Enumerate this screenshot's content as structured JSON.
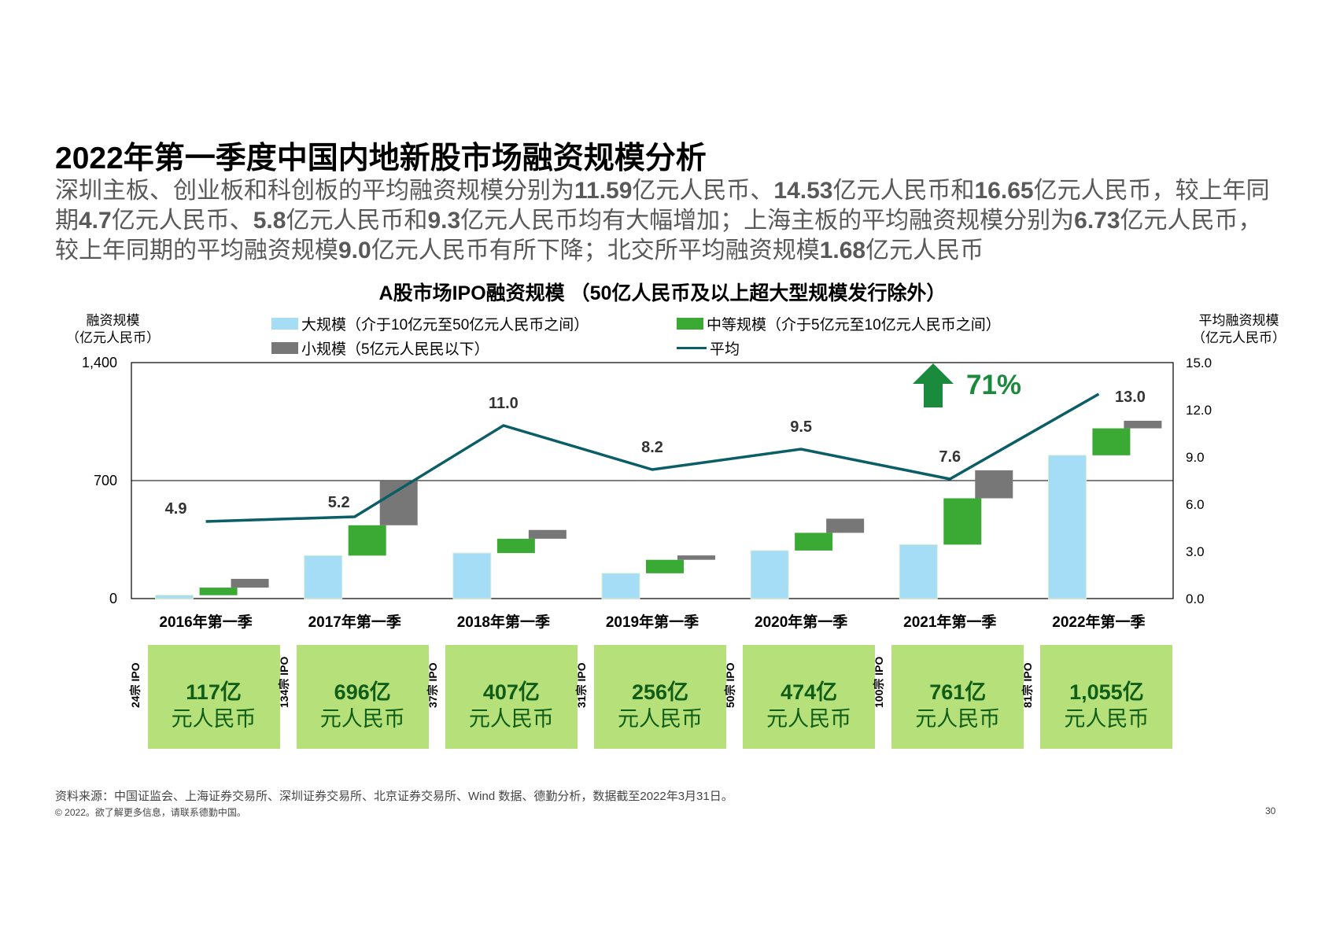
{
  "title": "2022年第一季度中国内地新股市场融资规模分析",
  "subtitle": {
    "p1": "深圳主板、创业板和科创板的平均融资规模分别为",
    "v1": "11.59",
    "p2": "亿元人民币、",
    "v2": "14.53",
    "p3": "亿元人民币和",
    "v3": "16.65",
    "p4": "亿元人民币，较上年同期",
    "v4": "4.7",
    "p5": "亿元人民币、",
    "v5": "5.8",
    "p6": "亿元人民币和",
    "v6": "9.3",
    "p7": "亿元人民币均有大幅增加；上海主板的平均融资规模分别为",
    "v7": "6.73",
    "p8": "亿元人民币，较上年同期的平均融资规模",
    "v8": "9.0",
    "p9": "亿元人民币有所下降；北交所平均融资规模",
    "v9": "1.68",
    "p10": "亿元人民币"
  },
  "chart_title": "A股市场IPO融资规模 （50亿人民币及以上超大型规模发行除外）",
  "left_axis_title": [
    "融资规模",
    "（亿元人民币）"
  ],
  "right_axis_title": [
    "平均融资规模",
    "（亿元人民币）"
  ],
  "legend": {
    "large": "大规模（介于10亿元至50亿元人民币之间）",
    "medium": "中等规模（介于5亿元至10亿元人民币之间）",
    "small": "小规模（5亿元人民民以下）",
    "avg": "平均"
  },
  "growth_label": "71%",
  "colors": {
    "large": "#a5dcf6",
    "medium": "#3aaa35",
    "small": "#777777",
    "avg": "#0b5d66",
    "box": "#b6e07a",
    "box_text": "#0f5d16",
    "arrow": "#1a8a3c"
  },
  "chart_data": {
    "type": "bar",
    "categories": [
      "2016年第一季",
      "2017年第一季",
      "2018年第一季",
      "2019年第一季",
      "2020年第一季",
      "2021年第一季",
      "2022年第一季"
    ],
    "series": [
      {
        "name": "大规模（介于10亿元至50亿元人民币之间）",
        "values": [
          20,
          255,
          270,
          150,
          285,
          320,
          850
        ]
      },
      {
        "name": "中等规模（介于5亿元至10亿元人民币之间）",
        "values": [
          45,
          180,
          85,
          80,
          105,
          275,
          160
        ]
      },
      {
        "name": "小规模（5亿元人民民以下）",
        "values": [
          52,
          261,
          52,
          26,
          84,
          166,
          45
        ]
      },
      {
        "name": "平均",
        "values": [
          4.9,
          5.2,
          11.0,
          8.2,
          9.5,
          7.6,
          13.0
        ],
        "axis": "right"
      }
    ],
    "avg_labels": [
      "4.9",
      "5.2",
      "11.0",
      "8.2",
      "9.5",
      "7.6",
      "13.0"
    ],
    "totals": [
      "117亿",
      "696亿",
      "407亿",
      "256亿",
      "474亿",
      "761亿",
      "1,055亿"
    ],
    "total_unit": "元人民币",
    "ipo_counts": [
      "24宗 IPO",
      "134宗 IPO",
      "37宗 IPO",
      "31宗 IPO",
      "50宗 IPO",
      "100宗 IPO",
      "81宗 IPO"
    ],
    "ylim": [
      0,
      1400
    ],
    "yticks": [
      "0",
      "700",
      "1,400"
    ],
    "ytick_values": [
      0,
      700,
      1400
    ],
    "y2lim": [
      0,
      15
    ],
    "y2ticks": [
      "0.0",
      "3.0",
      "6.0",
      "9.0",
      "12.0",
      "15.0"
    ],
    "y2tick_values": [
      0,
      3,
      6,
      9,
      12,
      15
    ]
  },
  "source": "资料来源：中国证监会、上海证券交易所、深圳证券交易所、北京证券交易所、Wind 数据、德勤分析，数据截至2022年3月31日。",
  "copyright": "© 2022。欲了解更多信息，请联系德勤中国。",
  "page_number": "30"
}
